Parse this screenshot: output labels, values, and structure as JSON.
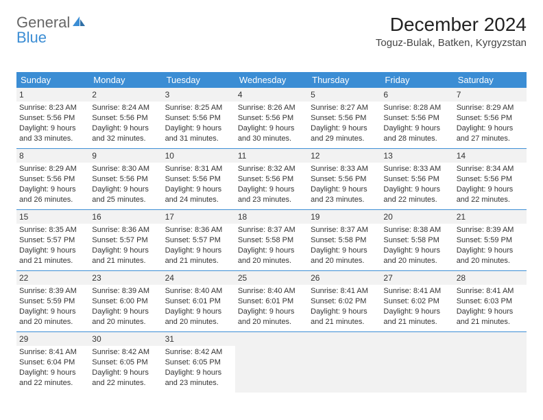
{
  "brand": {
    "name_part1": "General",
    "name_part2": "Blue"
  },
  "title": "December 2024",
  "location": "Toguz-Bulak, Batken, Kyrgyzstan",
  "colors": {
    "accent": "#3b8dd4",
    "band": "#f2f2f2",
    "text": "#333333",
    "bg": "#ffffff"
  },
  "day_headers": [
    "Sunday",
    "Monday",
    "Tuesday",
    "Wednesday",
    "Thursday",
    "Friday",
    "Saturday"
  ],
  "weeks": [
    [
      {
        "n": "1",
        "sunrise": "Sunrise: 8:23 AM",
        "sunset": "Sunset: 5:56 PM",
        "daylight": "Daylight: 9 hours and 33 minutes."
      },
      {
        "n": "2",
        "sunrise": "Sunrise: 8:24 AM",
        "sunset": "Sunset: 5:56 PM",
        "daylight": "Daylight: 9 hours and 32 minutes."
      },
      {
        "n": "3",
        "sunrise": "Sunrise: 8:25 AM",
        "sunset": "Sunset: 5:56 PM",
        "daylight": "Daylight: 9 hours and 31 minutes."
      },
      {
        "n": "4",
        "sunrise": "Sunrise: 8:26 AM",
        "sunset": "Sunset: 5:56 PM",
        "daylight": "Daylight: 9 hours and 30 minutes."
      },
      {
        "n": "5",
        "sunrise": "Sunrise: 8:27 AM",
        "sunset": "Sunset: 5:56 PM",
        "daylight": "Daylight: 9 hours and 29 minutes."
      },
      {
        "n": "6",
        "sunrise": "Sunrise: 8:28 AM",
        "sunset": "Sunset: 5:56 PM",
        "daylight": "Daylight: 9 hours and 28 minutes."
      },
      {
        "n": "7",
        "sunrise": "Sunrise: 8:29 AM",
        "sunset": "Sunset: 5:56 PM",
        "daylight": "Daylight: 9 hours and 27 minutes."
      }
    ],
    [
      {
        "n": "8",
        "sunrise": "Sunrise: 8:29 AM",
        "sunset": "Sunset: 5:56 PM",
        "daylight": "Daylight: 9 hours and 26 minutes."
      },
      {
        "n": "9",
        "sunrise": "Sunrise: 8:30 AM",
        "sunset": "Sunset: 5:56 PM",
        "daylight": "Daylight: 9 hours and 25 minutes."
      },
      {
        "n": "10",
        "sunrise": "Sunrise: 8:31 AM",
        "sunset": "Sunset: 5:56 PM",
        "daylight": "Daylight: 9 hours and 24 minutes."
      },
      {
        "n": "11",
        "sunrise": "Sunrise: 8:32 AM",
        "sunset": "Sunset: 5:56 PM",
        "daylight": "Daylight: 9 hours and 23 minutes."
      },
      {
        "n": "12",
        "sunrise": "Sunrise: 8:33 AM",
        "sunset": "Sunset: 5:56 PM",
        "daylight": "Daylight: 9 hours and 23 minutes."
      },
      {
        "n": "13",
        "sunrise": "Sunrise: 8:33 AM",
        "sunset": "Sunset: 5:56 PM",
        "daylight": "Daylight: 9 hours and 22 minutes."
      },
      {
        "n": "14",
        "sunrise": "Sunrise: 8:34 AM",
        "sunset": "Sunset: 5:56 PM",
        "daylight": "Daylight: 9 hours and 22 minutes."
      }
    ],
    [
      {
        "n": "15",
        "sunrise": "Sunrise: 8:35 AM",
        "sunset": "Sunset: 5:57 PM",
        "daylight": "Daylight: 9 hours and 21 minutes."
      },
      {
        "n": "16",
        "sunrise": "Sunrise: 8:36 AM",
        "sunset": "Sunset: 5:57 PM",
        "daylight": "Daylight: 9 hours and 21 minutes."
      },
      {
        "n": "17",
        "sunrise": "Sunrise: 8:36 AM",
        "sunset": "Sunset: 5:57 PM",
        "daylight": "Daylight: 9 hours and 21 minutes."
      },
      {
        "n": "18",
        "sunrise": "Sunrise: 8:37 AM",
        "sunset": "Sunset: 5:58 PM",
        "daylight": "Daylight: 9 hours and 20 minutes."
      },
      {
        "n": "19",
        "sunrise": "Sunrise: 8:37 AM",
        "sunset": "Sunset: 5:58 PM",
        "daylight": "Daylight: 9 hours and 20 minutes."
      },
      {
        "n": "20",
        "sunrise": "Sunrise: 8:38 AM",
        "sunset": "Sunset: 5:58 PM",
        "daylight": "Daylight: 9 hours and 20 minutes."
      },
      {
        "n": "21",
        "sunrise": "Sunrise: 8:39 AM",
        "sunset": "Sunset: 5:59 PM",
        "daylight": "Daylight: 9 hours and 20 minutes."
      }
    ],
    [
      {
        "n": "22",
        "sunrise": "Sunrise: 8:39 AM",
        "sunset": "Sunset: 5:59 PM",
        "daylight": "Daylight: 9 hours and 20 minutes."
      },
      {
        "n": "23",
        "sunrise": "Sunrise: 8:39 AM",
        "sunset": "Sunset: 6:00 PM",
        "daylight": "Daylight: 9 hours and 20 minutes."
      },
      {
        "n": "24",
        "sunrise": "Sunrise: 8:40 AM",
        "sunset": "Sunset: 6:01 PM",
        "daylight": "Daylight: 9 hours and 20 minutes."
      },
      {
        "n": "25",
        "sunrise": "Sunrise: 8:40 AM",
        "sunset": "Sunset: 6:01 PM",
        "daylight": "Daylight: 9 hours and 20 minutes."
      },
      {
        "n": "26",
        "sunrise": "Sunrise: 8:41 AM",
        "sunset": "Sunset: 6:02 PM",
        "daylight": "Daylight: 9 hours and 21 minutes."
      },
      {
        "n": "27",
        "sunrise": "Sunrise: 8:41 AM",
        "sunset": "Sunset: 6:02 PM",
        "daylight": "Daylight: 9 hours and 21 minutes."
      },
      {
        "n": "28",
        "sunrise": "Sunrise: 8:41 AM",
        "sunset": "Sunset: 6:03 PM",
        "daylight": "Daylight: 9 hours and 21 minutes."
      }
    ],
    [
      {
        "n": "29",
        "sunrise": "Sunrise: 8:41 AM",
        "sunset": "Sunset: 6:04 PM",
        "daylight": "Daylight: 9 hours and 22 minutes."
      },
      {
        "n": "30",
        "sunrise": "Sunrise: 8:42 AM",
        "sunset": "Sunset: 6:05 PM",
        "daylight": "Daylight: 9 hours and 22 minutes."
      },
      {
        "n": "31",
        "sunrise": "Sunrise: 8:42 AM",
        "sunset": "Sunset: 6:05 PM",
        "daylight": "Daylight: 9 hours and 23 minutes."
      },
      null,
      null,
      null,
      null
    ]
  ]
}
